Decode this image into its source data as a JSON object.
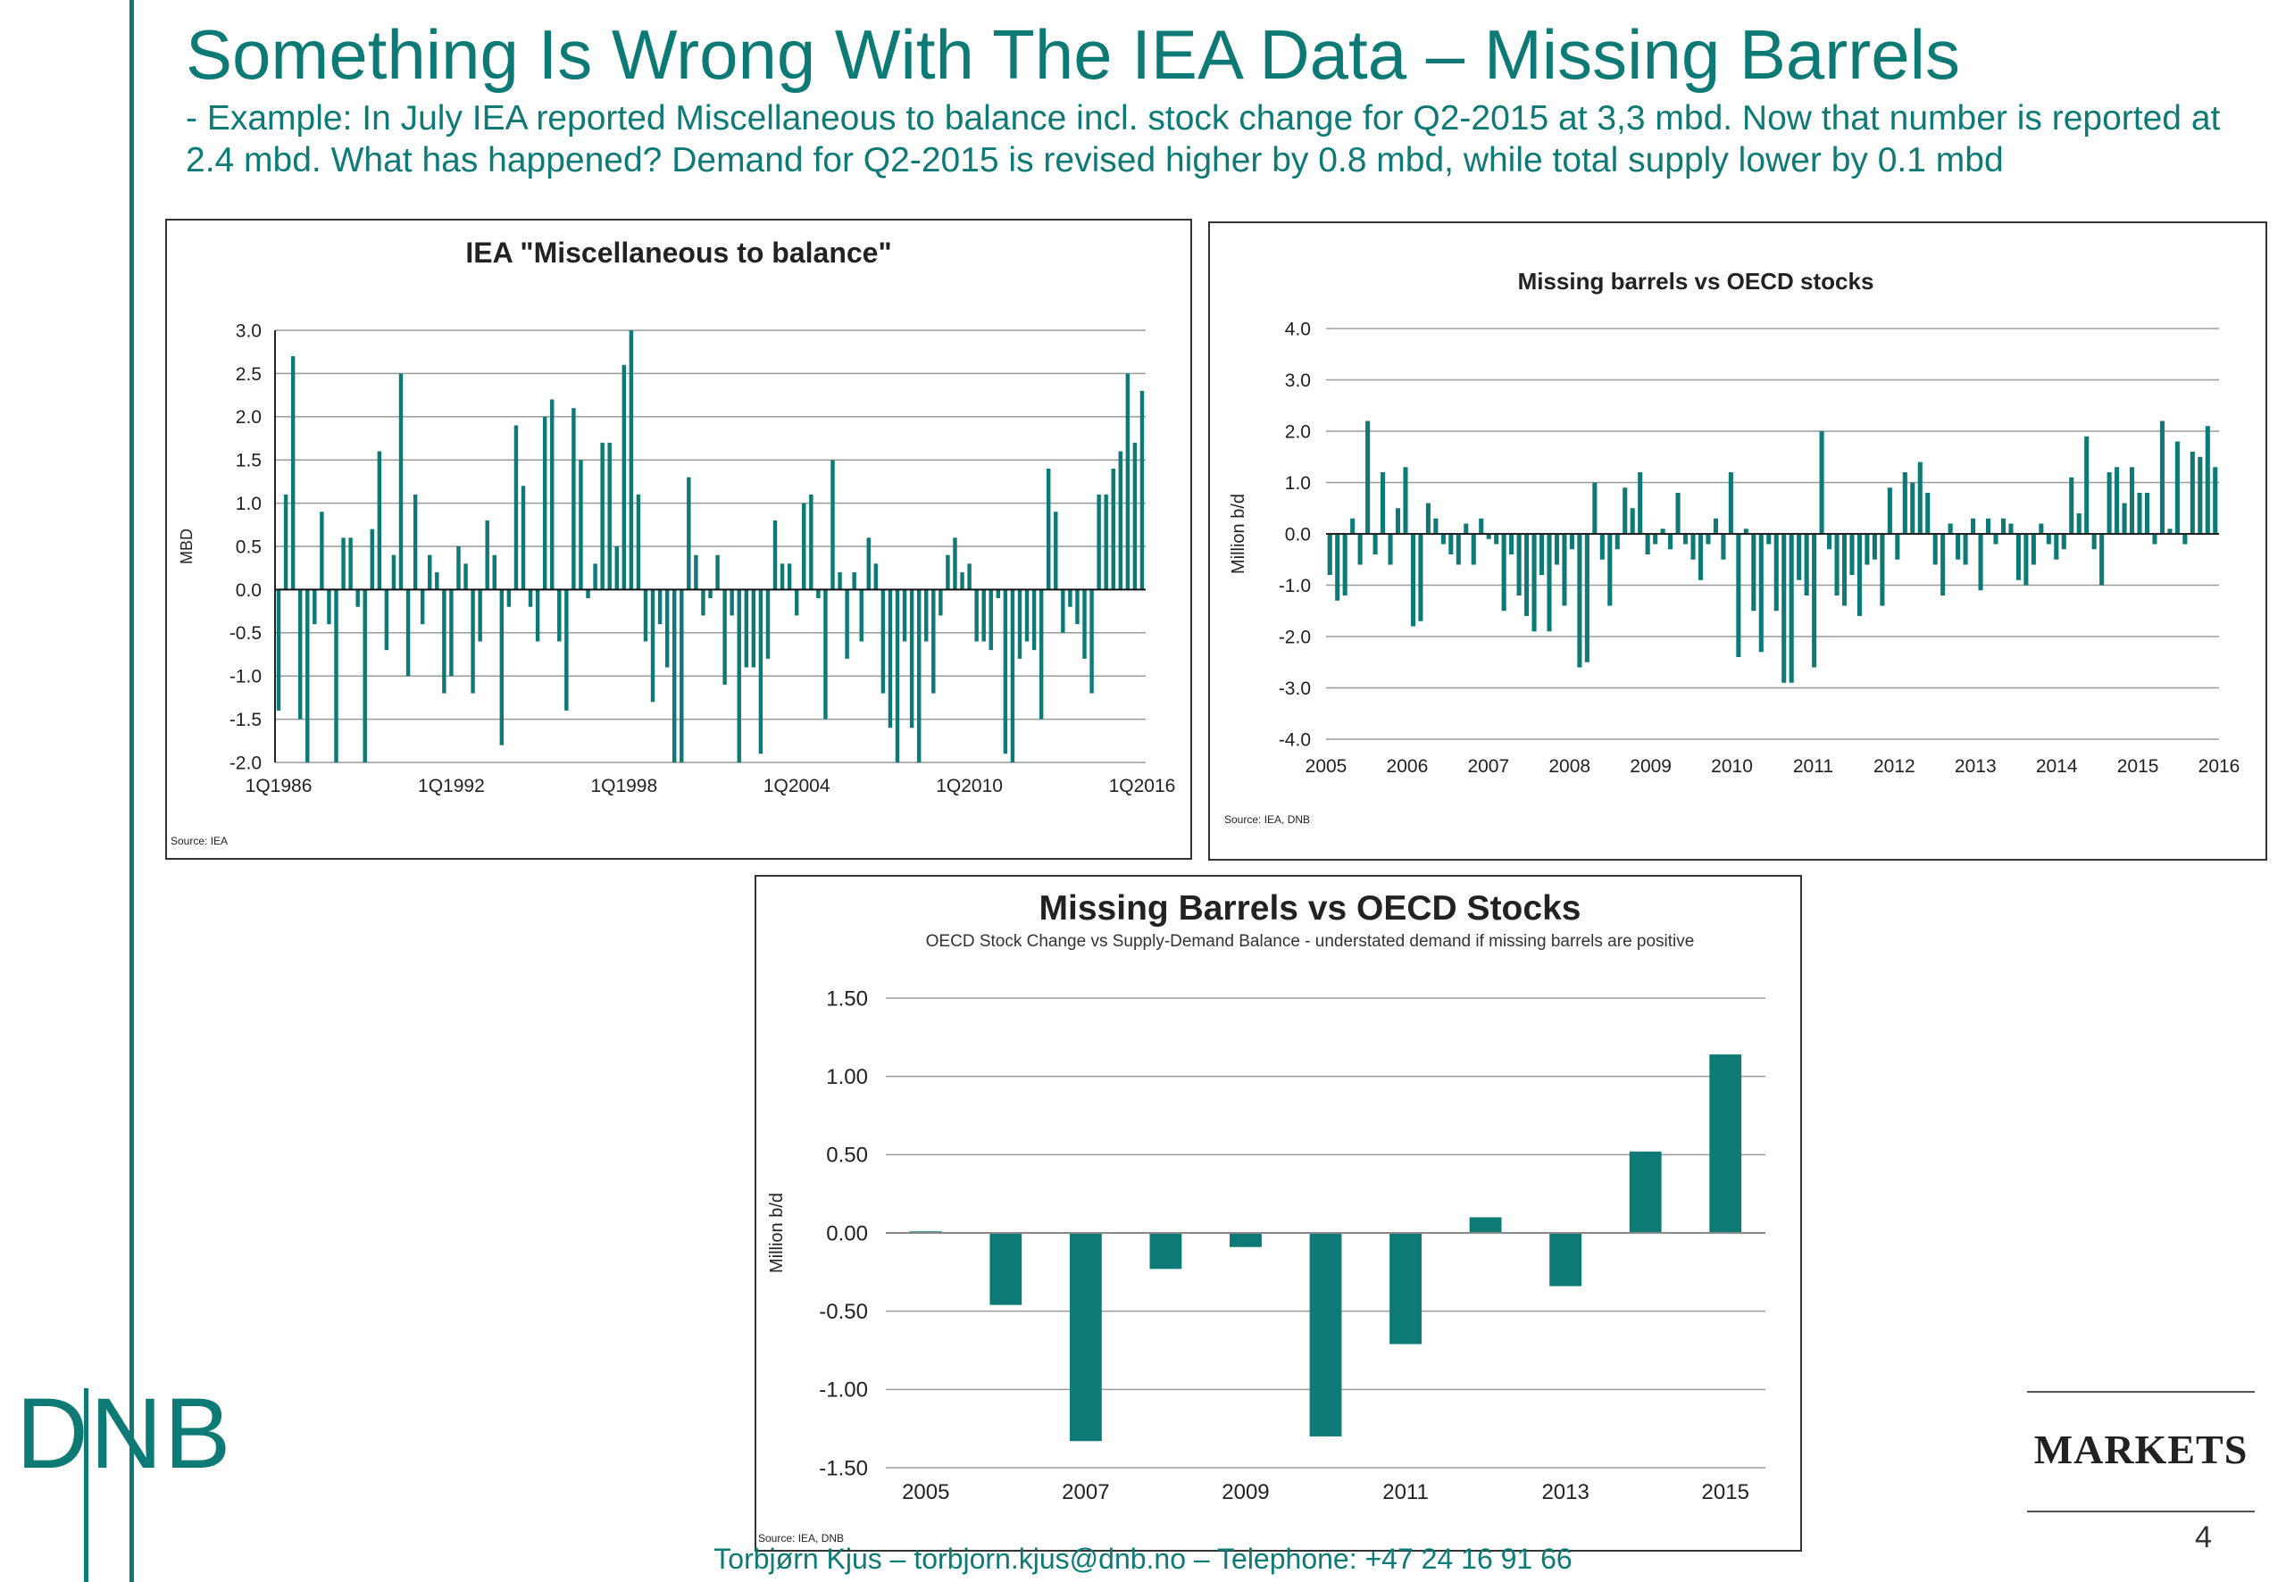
{
  "header": {
    "title": "Something Is Wrong With The IEA Data – Missing Barrels",
    "subtitle": "- Example: In July IEA reported Miscellaneous to balance incl. stock change for Q2-2015 at 3,3 mbd. Now that number is reported at 2.4 mbd. What has happened? Demand for Q2-2015 is revised higher by 0.8 mbd, while total supply lower by 0.1 mbd"
  },
  "footer": {
    "contact": "Torbjørn Kjus – torbjorn.kjus@dnb.no – Telephone: +47 24 16 91 66"
  },
  "branding": {
    "logo_text": "DNB",
    "markets_label": "MARKETS",
    "page_number": "4"
  },
  "colors": {
    "bar": "#0e7a76",
    "accent": "#0e7a76",
    "grid": "#9a9a9a"
  },
  "chart_data": [
    {
      "type": "bar",
      "title": "IEA \"Miscellaneous to balance\"",
      "ylabel": "MBD",
      "ylim": [
        -2.0,
        3.0
      ],
      "yticks": [
        "3.0",
        "2.5",
        "2.0",
        "1.5",
        "1.0",
        "0.5",
        "0.0",
        "-0.5",
        "-1.0",
        "-1.5",
        "-2.0"
      ],
      "xtick_labels": [
        "1Q1986",
        "1Q1992",
        "1Q1998",
        "1Q2004",
        "1Q2010",
        "1Q2016"
      ],
      "source": "Source: IEA",
      "start_quarter": "1Q1986",
      "values": [
        -1.4,
        1.1,
        2.7,
        -1.5,
        -2.0,
        -0.4,
        0.9,
        -0.4,
        -2.0,
        0.6,
        0.6,
        -0.2,
        -2.0,
        0.7,
        1.6,
        -0.7,
        0.4,
        2.5,
        -1.0,
        1.1,
        -0.4,
        0.4,
        0.2,
        -1.2,
        -1.0,
        0.5,
        0.3,
        -1.2,
        -0.6,
        0.8,
        0.4,
        -1.8,
        -0.2,
        1.9,
        1.2,
        -0.2,
        -0.6,
        2.0,
        2.2,
        -0.6,
        -1.4,
        2.1,
        1.5,
        -0.1,
        0.3,
        1.7,
        1.7,
        0.5,
        2.6,
        3.0,
        1.1,
        -0.6,
        -1.3,
        -0.4,
        -0.9,
        -2.0,
        -2.0,
        1.3,
        0.4,
        -0.3,
        -0.1,
        0.4,
        -1.1,
        -0.3,
        -2.0,
        -0.9,
        -0.9,
        -1.9,
        -0.8,
        0.8,
        0.3,
        0.3,
        -0.3,
        1.0,
        1.1,
        -0.1,
        -1.5,
        1.5,
        0.2,
        -0.8,
        0.2,
        -0.6,
        0.6,
        0.3,
        -1.2,
        -1.6,
        -2.0,
        -0.6,
        -1.6,
        -2.0,
        -0.6,
        -1.2,
        -0.3,
        0.4,
        0.6,
        0.2,
        0.3,
        -0.6,
        -0.6,
        -0.7,
        -0.1,
        -1.9,
        -2.0,
        -0.8,
        -0.6,
        -0.7,
        -1.5,
        1.4,
        0.9,
        -0.5,
        -0.2,
        -0.4,
        -0.8,
        -1.2,
        1.1,
        1.1,
        1.4,
        1.6,
        2.5,
        1.7,
        2.3
      ]
    },
    {
      "type": "bar",
      "title": "Missing barrels vs  OECD stocks",
      "ylabel": "Million b/d",
      "ylim": [
        -4.0,
        4.0
      ],
      "yticks": [
        "4.0",
        "3.0",
        "2.0",
        "1.0",
        "0.0",
        "-1.0",
        "-2.0",
        "-3.0",
        "-4.0"
      ],
      "xtick_labels": [
        "2005",
        "2006",
        "2007",
        "2008",
        "2009",
        "2010",
        "2011",
        "2012",
        "2013",
        "2014",
        "2015",
        "2016"
      ],
      "source": "Source: IEA, DNB",
      "values": [
        -0.8,
        -1.3,
        -1.2,
        0.3,
        -0.6,
        2.2,
        -0.4,
        1.2,
        -0.6,
        0.5,
        1.3,
        -1.8,
        -1.7,
        0.6,
        0.3,
        -0.2,
        -0.4,
        -0.6,
        0.2,
        -0.6,
        0.3,
        -0.1,
        -0.2,
        -1.5,
        -0.4,
        -1.2,
        -1.6,
        -1.9,
        -0.8,
        -1.9,
        -0.6,
        -1.4,
        -0.3,
        -2.6,
        -2.5,
        1.0,
        -0.5,
        -1.4,
        -0.3,
        0.9,
        0.5,
        1.2,
        -0.4,
        -0.2,
        0.1,
        -0.3,
        0.8,
        -0.2,
        -0.5,
        -0.9,
        -0.2,
        0.3,
        -0.5,
        1.2,
        -2.4,
        0.1,
        -1.5,
        -2.3,
        -0.2,
        -1.5,
        -2.9,
        -2.9,
        -0.9,
        -1.2,
        -2.6,
        2.0,
        -0.3,
        -1.2,
        -1.4,
        -0.8,
        -1.6,
        -0.6,
        -0.5,
        -1.4,
        0.9,
        -0.5,
        1.2,
        1.0,
        1.4,
        0.8,
        -0.6,
        -1.2,
        0.2,
        -0.5,
        -0.6,
        0.3,
        -1.1,
        0.3,
        -0.2,
        0.3,
        0.2,
        -0.9,
        -1.0,
        -0.6,
        0.2,
        -0.2,
        -0.5,
        -0.3,
        1.1,
        0.4,
        1.9,
        -0.3,
        -1.0,
        1.2,
        1.3,
        0.6,
        1.3,
        0.8,
        0.8,
        -0.2,
        2.2,
        0.1,
        1.8,
        -0.2,
        1.6,
        1.5,
        2.1,
        1.3
      ]
    },
    {
      "type": "bar",
      "title": "Missing Barrels vs OECD Stocks",
      "subtitle": "OECD Stock Change vs Supply-Demand Balance - understated demand if missing barrels are positive",
      "ylabel": "Million b/d",
      "ylim": [
        -1.5,
        1.5
      ],
      "yticks": [
        "1.50",
        "1.00",
        "0.50",
        "0.00",
        "-0.50",
        "-1.00",
        "-1.50"
      ],
      "categories": [
        "2005",
        "2006",
        "2007",
        "2008",
        "2009",
        "2010",
        "2011",
        "2012",
        "2013",
        "2014",
        "2015"
      ],
      "xtick_labels": [
        "2005",
        "",
        "2007",
        "",
        "2009",
        "",
        "2011",
        "",
        "2013",
        "",
        "2015"
      ],
      "values": [
        0.01,
        -0.46,
        -1.33,
        -0.23,
        -0.09,
        -1.3,
        -0.71,
        0.1,
        -0.34,
        0.52,
        1.14
      ],
      "source": "Source: IEA, DNB"
    }
  ]
}
